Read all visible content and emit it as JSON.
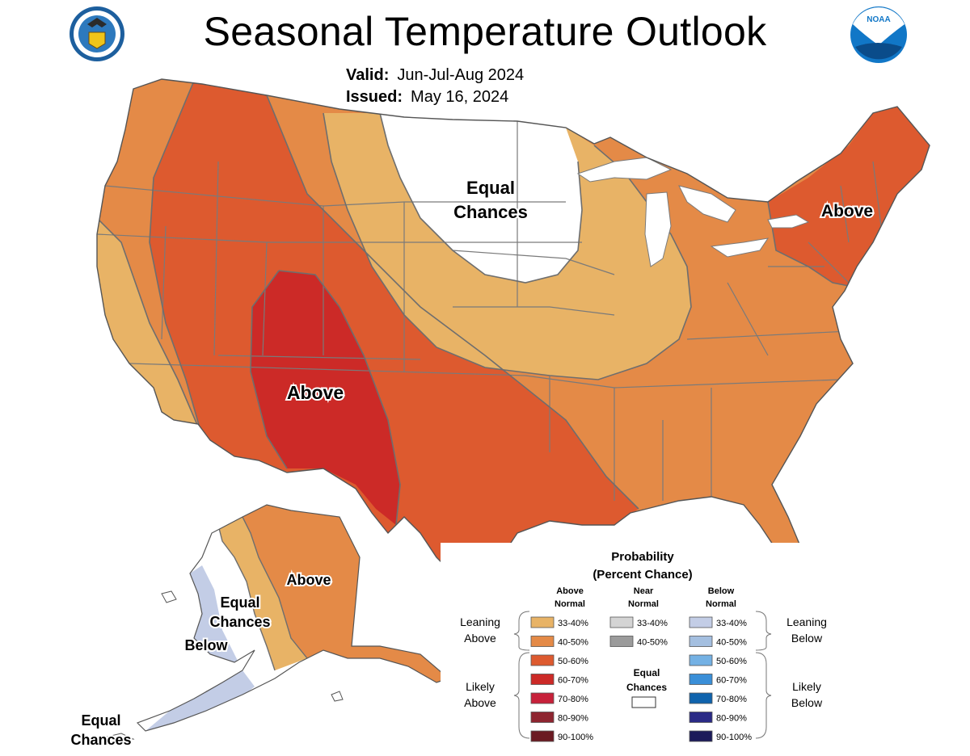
{
  "title": "Seasonal Temperature Outlook",
  "valid_label": "Valid:",
  "valid_value": "Jun-Jul-Aug 2024",
  "issued_label": "Issued:",
  "issued_value": "May 16, 2024",
  "logos": {
    "left": "department-of-commerce-seal",
    "right": "noaa-logo",
    "right_text": "NOAA"
  },
  "map_labels": {
    "equal_chances_north": [
      "Equal",
      "Chances"
    ],
    "above_southwest": "Above",
    "above_northeast": "Above",
    "above_alaska": "Above",
    "equal_chances_alaska": [
      "Equal",
      "Chances"
    ],
    "below_alaska": "Below",
    "equal_chances_aleutians": [
      "Equal",
      "Chances"
    ]
  },
  "legend": {
    "title": [
      "Probability",
      "(Percent Chance)"
    ],
    "columns": {
      "above": [
        "Above",
        "Normal"
      ],
      "near": [
        "Near",
        "Normal"
      ],
      "below": [
        "Below",
        "Normal"
      ]
    },
    "groups": {
      "leaning_above": [
        "Leaning",
        "Above"
      ],
      "likely_above": [
        "Likely",
        "Above"
      ],
      "leaning_below": [
        "Leaning",
        "Below"
      ],
      "likely_below": [
        "Likely",
        "Below"
      ]
    },
    "equal_chances": [
      "Equal",
      "Chances"
    ],
    "above_swatches": [
      {
        "label": "33-40%",
        "color": "#e8b366"
      },
      {
        "label": "40-50%",
        "color": "#e48a47"
      },
      {
        "label": "50-60%",
        "color": "#dd5a2f"
      },
      {
        "label": "60-70%",
        "color": "#cc2a27"
      },
      {
        "label": "70-80%",
        "color": "#c7213a"
      },
      {
        "label": "80-90%",
        "color": "#8e2530"
      },
      {
        "label": "90-100%",
        "color": "#6b1a22"
      }
    ],
    "near_swatches": [
      {
        "label": "33-40%",
        "color": "#d4d4d4"
      },
      {
        "label": "40-50%",
        "color": "#9b9b9b"
      }
    ],
    "below_swatches": [
      {
        "label": "33-40%",
        "color": "#c3cde6"
      },
      {
        "label": "40-50%",
        "color": "#a4bfe0"
      },
      {
        "label": "50-60%",
        "color": "#74b1e4"
      },
      {
        "label": "60-70%",
        "color": "#3a8fd8"
      },
      {
        "label": "70-80%",
        "color": "#0f63ad"
      },
      {
        "label": "80-90%",
        "color": "#2a2a86"
      },
      {
        "label": "90-100%",
        "color": "#1c1a5a"
      }
    ]
  }
}
